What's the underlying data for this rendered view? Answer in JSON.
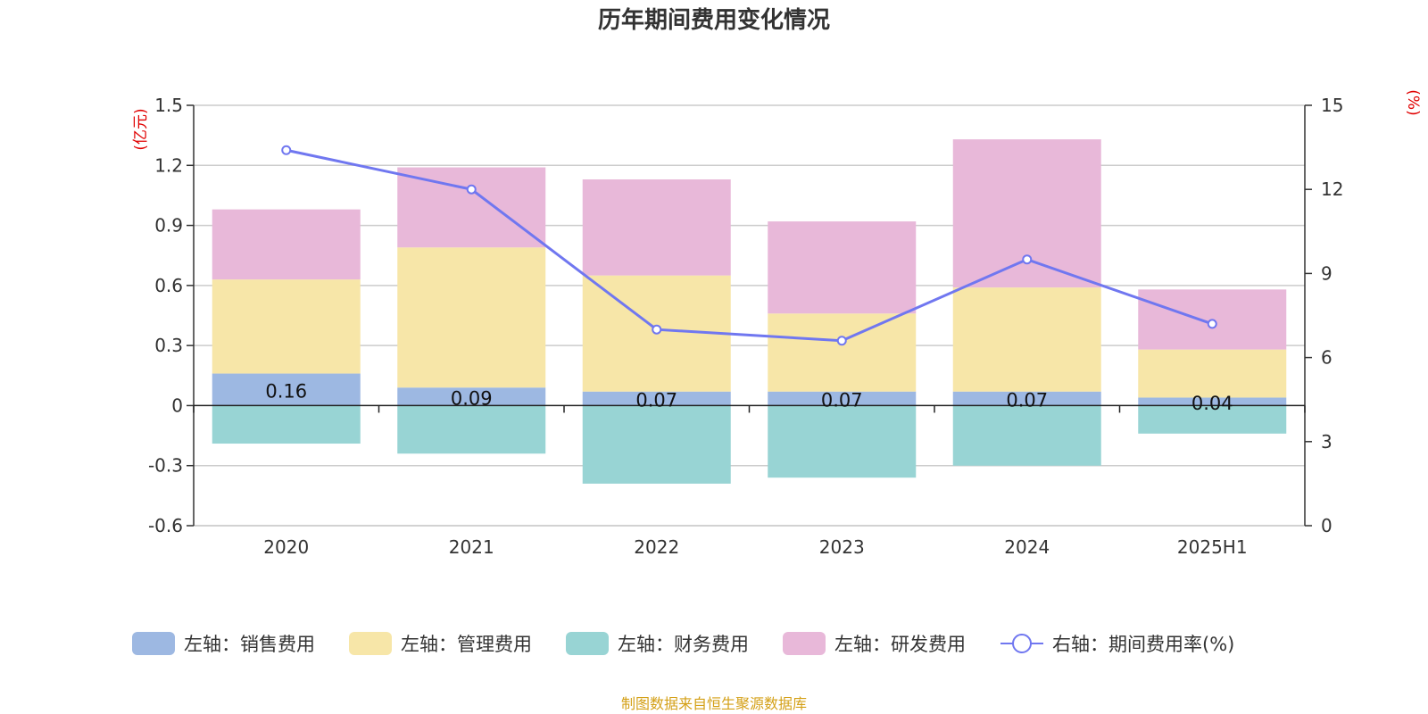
{
  "chart_data": {
    "type": "bar",
    "title": "历年期间费用变化情况",
    "categories": [
      "2020",
      "2021",
      "2022",
      "2023",
      "2024",
      "2025H1"
    ],
    "stacked": true,
    "left_axis": {
      "unit_label": "(亿元)",
      "ylim": [
        -0.6,
        1.5
      ],
      "ticks": [
        "1.5",
        "1.2",
        "0.9",
        "0.6",
        "0.3",
        "0",
        "-0.3",
        "-0.6"
      ]
    },
    "right_axis": {
      "unit_label": "(%)",
      "ylim": [
        0,
        15
      ],
      "ticks": [
        "15",
        "12",
        "9",
        "6",
        "3",
        "0"
      ]
    },
    "series": [
      {
        "name": "左轴：销售费用",
        "axis": "left",
        "type": "bar",
        "color": "#9db8e2",
        "values": [
          0.16,
          0.09,
          0.07,
          0.07,
          0.07,
          0.04
        ],
        "labels": [
          "0.16",
          "0.09",
          "0.07",
          "0.07",
          "0.07",
          "0.04"
        ]
      },
      {
        "name": "左轴：管理费用",
        "axis": "left",
        "type": "bar",
        "color": "#f7e6a8",
        "values": [
          0.47,
          0.7,
          0.58,
          0.39,
          0.52,
          0.24
        ]
      },
      {
        "name": "左轴：财务费用",
        "axis": "left",
        "type": "bar",
        "color": "#98d4d4",
        "values": [
          -0.19,
          -0.24,
          -0.39,
          -0.36,
          -0.3,
          -0.14
        ]
      },
      {
        "name": "左轴：研发费用",
        "axis": "left",
        "type": "bar",
        "color": "#e8b8d9",
        "values": [
          0.35,
          0.4,
          0.48,
          0.46,
          0.74,
          0.3
        ]
      },
      {
        "name": "右轴：期间费用率(%)",
        "axis": "right",
        "type": "line",
        "color": "#7077f0",
        "values": [
          13.4,
          12.0,
          7.0,
          6.6,
          9.5,
          7.2
        ]
      }
    ],
    "legend_position": "bottom",
    "grid": true,
    "source_note": "制图数据来自恒生聚源数据库"
  }
}
